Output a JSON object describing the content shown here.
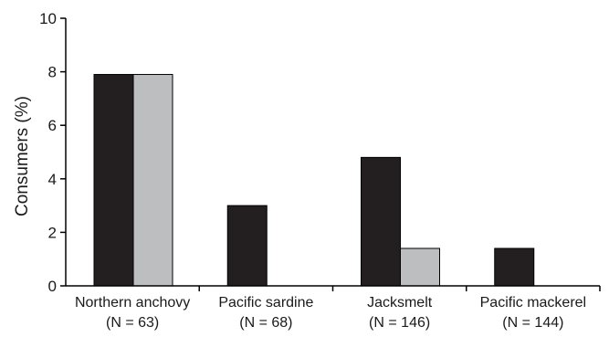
{
  "chart_data": {
    "type": "bar",
    "title": "",
    "xlabel": "",
    "ylabel": "Consumers (%)",
    "ylim": [
      0,
      10
    ],
    "yticks": [
      0,
      2,
      4,
      6,
      8,
      10
    ],
    "grid": false,
    "legend": "none",
    "categories": [
      {
        "name": "Northern anchovy",
        "n_label": "(N = 63)"
      },
      {
        "name": "Pacific sardine",
        "n_label": "(N = 68)"
      },
      {
        "name": "Jacksmelt",
        "n_label": "(N = 146)"
      },
      {
        "name": "Pacific mackerel",
        "n_label": "(N = 144)"
      }
    ],
    "series": [
      {
        "color": "#231f20",
        "values": [
          7.9,
          3.0,
          4.8,
          1.4
        ]
      },
      {
        "color": "#bcbec0",
        "values": [
          7.9,
          0,
          1.4,
          0
        ]
      }
    ]
  }
}
